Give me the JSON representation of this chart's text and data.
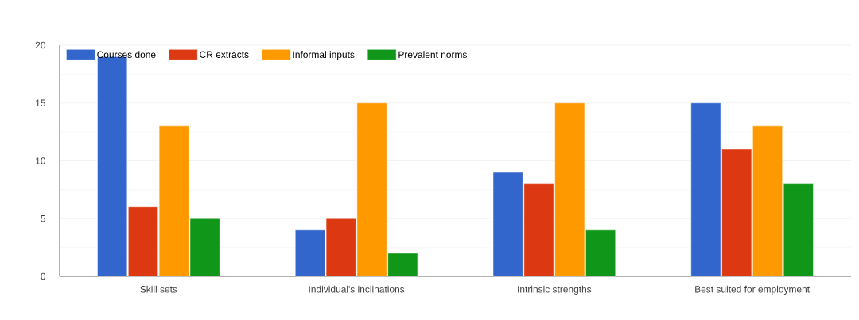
{
  "chart_data": {
    "type": "bar",
    "categories": [
      "Skill sets",
      "Individual's inclinations",
      "Intrinsic strengths",
      "Best suited for employment"
    ],
    "series": [
      {
        "name": "Courses done",
        "color": "#3366cc",
        "values": [
          19,
          4,
          9,
          15
        ]
      },
      {
        "name": "CR extracts",
        "color": "#dc3912",
        "values": [
          6,
          5,
          8,
          11
        ]
      },
      {
        "name": "Informal inputs",
        "color": "#ff9900",
        "values": [
          13,
          15,
          15,
          13
        ]
      },
      {
        "name": "Prevalent norms",
        "color": "#109618",
        "values": [
          5,
          2,
          4,
          8
        ]
      }
    ],
    "ylim": [
      0,
      20
    ],
    "yticks": [
      0,
      5,
      10,
      15,
      20
    ],
    "grid": "y",
    "legend": "top left"
  }
}
